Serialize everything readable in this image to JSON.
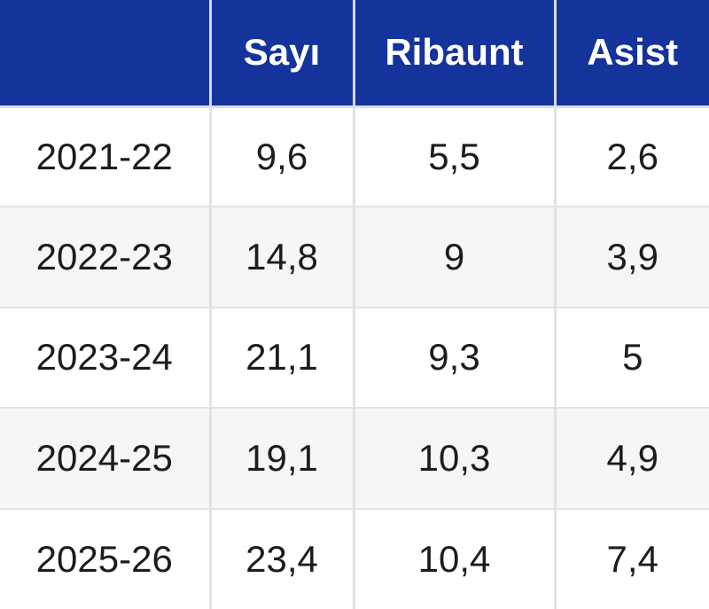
{
  "colors": {
    "header_bg": "#14339b",
    "header_text": "#ffffff",
    "header_divider": "#d3d9f0",
    "header_bottom_border": "#d8def2",
    "row_bg_odd": "#ffffff",
    "row_bg_even": "#f6f6f7",
    "grid_border": "#e2e2e2",
    "cell_text": "#1c1c1e"
  },
  "table": {
    "columns": [
      "",
      "Sayı",
      "Ribaunt",
      "Asist"
    ],
    "rows": [
      {
        "label": "2021-22",
        "values": [
          "9,6",
          "5,5",
          "2,6"
        ]
      },
      {
        "label": "2022-23",
        "values": [
          "14,8",
          "9",
          "3,9"
        ]
      },
      {
        "label": "2023-24",
        "values": [
          "21,1",
          "9,3",
          "5"
        ]
      },
      {
        "label": "2024-25",
        "values": [
          "19,1",
          "10,3",
          "4,9"
        ]
      },
      {
        "label": "2025-26",
        "values": [
          "23,4",
          "10,4",
          "7,4"
        ]
      }
    ]
  },
  "chart_data": {
    "type": "table",
    "title": "",
    "columns": [
      "",
      "Sayı",
      "Ribaunt",
      "Asist"
    ],
    "rows": [
      [
        "2021-22",
        "9,6",
        "5,5",
        "2,6"
      ],
      [
        "2022-23",
        "14,8",
        "9",
        "3,9"
      ],
      [
        "2023-24",
        "21,1",
        "9,3",
        "5"
      ],
      [
        "2024-25",
        "19,1",
        "10,3",
        "4,9"
      ],
      [
        "2025-26",
        "23,4",
        "10,4",
        "7,4"
      ]
    ],
    "series": [
      {
        "name": "Sayı",
        "values": [
          9.6,
          14.8,
          21.1,
          19.1,
          23.4
        ]
      },
      {
        "name": "Ribaunt",
        "values": [
          5.5,
          9.0,
          9.3,
          10.3,
          10.4
        ]
      },
      {
        "name": "Asist",
        "values": [
          2.6,
          3.9,
          5.0,
          4.9,
          7.4
        ]
      }
    ],
    "categories": [
      "2021-22",
      "2022-23",
      "2023-24",
      "2024-25",
      "2025-26"
    ],
    "decimal_separator": ","
  }
}
